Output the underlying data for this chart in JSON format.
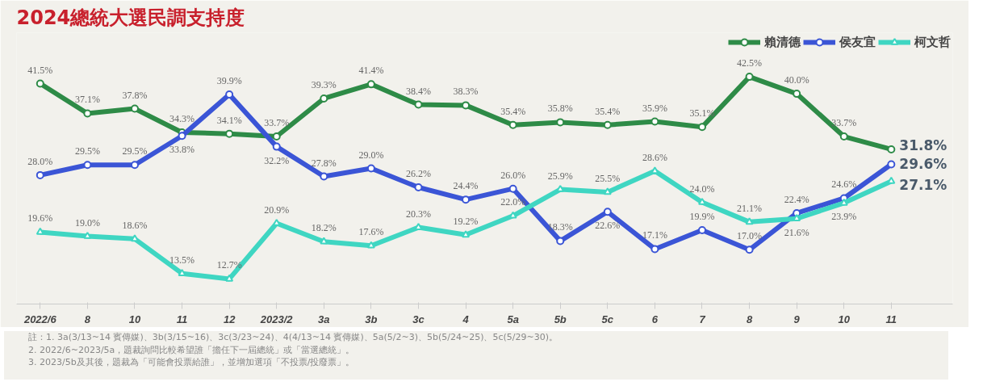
{
  "chart_data": {
    "type": "line",
    "title": "2024總統大選民調支持度",
    "categories": [
      "2022/6",
      "8",
      "10",
      "11",
      "12",
      "2023/2",
      "3a",
      "3b",
      "3c",
      "4",
      "5a",
      "5b",
      "5c",
      "6",
      "7",
      "8",
      "9",
      "10",
      "11"
    ],
    "series": [
      {
        "name": "賴清德",
        "color": "#2e8b47",
        "marker": "circle",
        "values": [
          41.5,
          37.1,
          37.8,
          34.3,
          34.1,
          33.7,
          39.3,
          41.4,
          38.4,
          38.3,
          35.4,
          35.8,
          35.4,
          35.9,
          35.1,
          42.5,
          40.0,
          33.7,
          31.8
        ],
        "value_labels": [
          "41.5%",
          "37.1%",
          "37.8%",
          "34.3%",
          "34.1%",
          "33.7%",
          "39.3%",
          "41.4%",
          "38.4%",
          "38.3%",
          "35.4%",
          "35.8%",
          "35.4%",
          "35.9%",
          "35.1%",
          "42.5%",
          "40.0%",
          "33.7%",
          "31.8%"
        ]
      },
      {
        "name": "侯友宜",
        "color": "#3b55d6",
        "marker": "circle",
        "values": [
          28.0,
          29.5,
          29.5,
          33.8,
          39.9,
          32.2,
          27.8,
          29.0,
          26.2,
          24.4,
          26.0,
          18.3,
          22.6,
          17.1,
          19.9,
          17.0,
          22.4,
          24.6,
          29.6
        ],
        "value_labels": [
          "28.0%",
          "29.5%",
          "29.5%",
          "33.8%",
          "39.9%",
          "32.2%",
          "27.8%",
          "29.0%",
          "26.2%",
          "24.4%",
          "26.0%",
          "18.3%",
          "22.6%",
          "17.1%",
          "19.9%",
          "17.0%",
          "22.4%",
          "24.6%",
          "29.6%"
        ]
      },
      {
        "name": "柯文哲",
        "color": "#3fd6c2",
        "marker": "triangle",
        "values": [
          19.6,
          19.0,
          18.6,
          13.5,
          12.7,
          20.9,
          18.2,
          17.6,
          20.3,
          19.2,
          22.0,
          25.9,
          25.5,
          28.6,
          24.0,
          21.1,
          21.6,
          23.9,
          27.1
        ],
        "value_labels": [
          "19.6%",
          "19.0%",
          "18.6%",
          "13.5%",
          "12.7%",
          "20.9%",
          "18.2%",
          "17.6%",
          "20.3%",
          "19.2%",
          "22.0%",
          "25.9%",
          "25.5%",
          "28.6%",
          "24.0%",
          "21.1%",
          "21.6%",
          "23.9%",
          "27.1%"
        ]
      }
    ],
    "ylim": [
      9,
      49
    ],
    "tick_labels": "x",
    "grid": false,
    "legend": "top right",
    "line_style": "solid",
    "annotations": [
      "註：1. 3a(3/13~14 賓傳媒)、3b(3/15~16)、3c(3/23~24)、4(4/13~14 賓傳媒)、5a(5/2~3)、5b(5/24~25)、5c(5/29~30)。",
      "2. 2022/6~2023/5a，題裁詢問比較希望誰「擔任下一屆總統」或「當選總統」。",
      "3. 2023/5b及其後，題裁為「可能會投票給誰」，並增加選項「不投票/投廢票」。"
    ]
  }
}
